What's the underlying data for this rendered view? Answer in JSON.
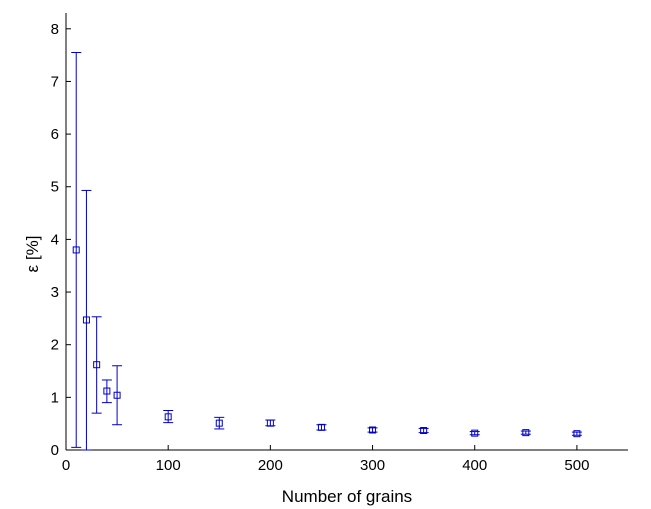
{
  "chart_data": {
    "type": "scatter",
    "xlabel": "Number of grains",
    "ylabel": "ε [%]",
    "xlim": [
      0,
      550
    ],
    "ylim": [
      0,
      8.3
    ],
    "xticks": [
      0,
      100,
      200,
      300,
      400,
      500
    ],
    "yticks": [
      0,
      1,
      2,
      3,
      4,
      5,
      6,
      7,
      8
    ],
    "grid": false,
    "marker": "open-square",
    "error_bars": true,
    "series": [
      {
        "color": "#0000cc",
        "points": [
          {
            "x": 10,
            "y": 3.8,
            "err_low": 0.05,
            "err_high": 7.55
          },
          {
            "x": 20,
            "y": 2.47,
            "err_low": 0.0,
            "err_high": 4.93
          },
          {
            "x": 30,
            "y": 1.62,
            "err_low": 0.7,
            "err_high": 2.53
          },
          {
            "x": 40,
            "y": 1.12,
            "err_low": 0.9,
            "err_high": 1.33
          },
          {
            "x": 50,
            "y": 1.04,
            "err_low": 0.48,
            "err_high": 1.6
          },
          {
            "x": 100,
            "y": 0.63,
            "err_low": 0.52,
            "err_high": 0.75
          },
          {
            "x": 150,
            "y": 0.51,
            "err_low": 0.4,
            "err_high": 0.62
          },
          {
            "x": 200,
            "y": 0.51,
            "err_low": 0.46,
            "err_high": 0.57
          },
          {
            "x": 250,
            "y": 0.43,
            "err_low": 0.38,
            "err_high": 0.48
          },
          {
            "x": 300,
            "y": 0.38,
            "err_low": 0.34,
            "err_high": 0.42
          },
          {
            "x": 350,
            "y": 0.37,
            "err_low": 0.33,
            "err_high": 0.41
          },
          {
            "x": 400,
            "y": 0.32,
            "err_low": 0.29,
            "err_high": 0.35
          },
          {
            "x": 450,
            "y": 0.33,
            "err_low": 0.3,
            "err_high": 0.36
          },
          {
            "x": 500,
            "y": 0.31,
            "err_low": 0.28,
            "err_high": 0.34
          }
        ]
      }
    ]
  }
}
